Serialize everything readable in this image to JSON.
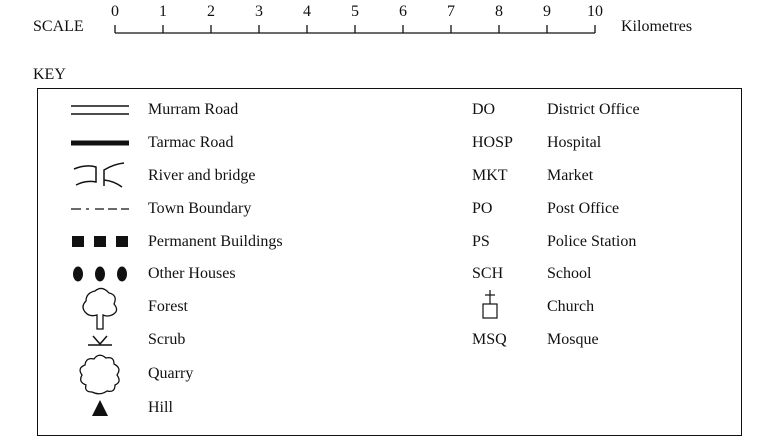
{
  "scale": {
    "label": "SCALE",
    "unit": "Kilometres",
    "ticks": [
      "0",
      "1",
      "2",
      "3",
      "4",
      "5",
      "6",
      "7",
      "8",
      "9",
      "10"
    ]
  },
  "key": {
    "title": "KEY",
    "symbols": [
      {
        "icon": "murram-road-icon",
        "label": "Murram Road"
      },
      {
        "icon": "tarmac-road-icon",
        "label": "Tarmac Road"
      },
      {
        "icon": "river-bridge-icon",
        "label": "River and bridge"
      },
      {
        "icon": "town-boundary-icon",
        "label": "Town Boundary"
      },
      {
        "icon": "permanent-buildings-icon",
        "label": "Permanent Buildings"
      },
      {
        "icon": "other-houses-icon",
        "label": "Other Houses"
      },
      {
        "icon": "forest-icon",
        "label": "Forest"
      },
      {
        "icon": "scrub-icon",
        "label": "Scrub"
      },
      {
        "icon": "quarry-icon",
        "label": "Quarry"
      },
      {
        "icon": "hill-icon",
        "label": "Hill"
      }
    ],
    "abbreviations": [
      {
        "code": "DO",
        "label": "District Office"
      },
      {
        "code": "HOSP",
        "label": "Hospital"
      },
      {
        "code": "MKT",
        "label": "Market"
      },
      {
        "code": "PO",
        "label": "Post Office"
      },
      {
        "code": "PS",
        "label": "Police Station"
      },
      {
        "code": "SCH",
        "label": "School"
      },
      {
        "code": "",
        "icon": "church-icon",
        "label": "Church"
      },
      {
        "code": "MSQ",
        "label": "Mosque"
      }
    ]
  }
}
